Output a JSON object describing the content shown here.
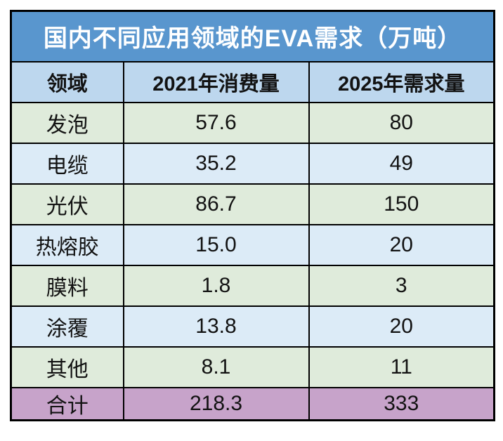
{
  "title": "国内不同应用领域的EVA需求（万吨）",
  "table": {
    "headers": [
      "领域",
      "2021年消费量",
      "2025年需求量"
    ],
    "rows": [
      {
        "label": "发泡",
        "v2021": "57.6",
        "v2025": "80"
      },
      {
        "label": "电缆",
        "v2021": "35.2",
        "v2025": "49"
      },
      {
        "label": "光伏",
        "v2021": "86.7",
        "v2025": "150"
      },
      {
        "label": "热熔胶",
        "v2021": "15.0",
        "v2025": "20"
      },
      {
        "label": "膜料",
        "v2021": "1.8",
        "v2025": "3"
      },
      {
        "label": "涂覆",
        "v2021": "13.8",
        "v2025": "20"
      },
      {
        "label": "其他",
        "v2021": "8.1",
        "v2025": "11"
      }
    ],
    "total": {
      "label": "合计",
      "v2021": "218.3",
      "v2025": "333"
    }
  },
  "chart_data": {
    "type": "table",
    "title": "国内不同应用领域的EVA需求（万吨）",
    "columns": [
      "领域",
      "2021年消费量",
      "2025年需求量"
    ],
    "categories": [
      "发泡",
      "电缆",
      "光伏",
      "热熔胶",
      "膜料",
      "涂覆",
      "其他"
    ],
    "series": [
      {
        "name": "2021年消费量",
        "values": [
          57.6,
          35.2,
          86.7,
          15.0,
          1.8,
          13.8,
          8.1
        ]
      },
      {
        "name": "2025年需求量",
        "values": [
          80,
          49,
          150,
          20,
          3,
          20,
          11
        ]
      }
    ],
    "totals": {
      "name": "合计",
      "values": [
        218.3,
        333
      ]
    }
  },
  "colors": {
    "title_bg": "#5996CE",
    "title_text": "#FFFFFF",
    "header_bg": "#BDD7EE",
    "row_green": "#DFEBDB",
    "row_blue": "#DCEBF7",
    "total_bg": "#C7A3CA",
    "border": "#000000",
    "text": "#121212"
  }
}
